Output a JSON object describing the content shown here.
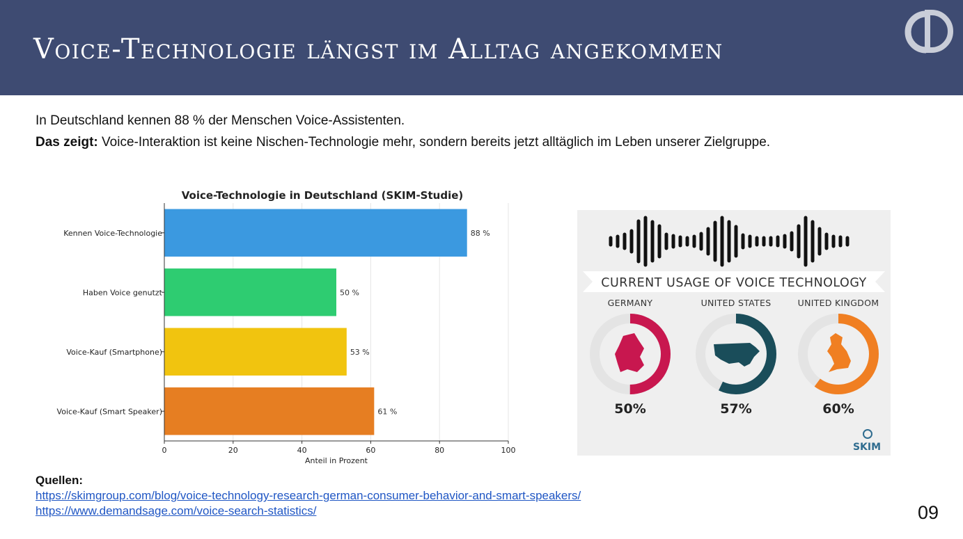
{
  "header": {
    "title": "Voice-Technologie längst im Alltag angekommen"
  },
  "intro": {
    "line1": "In Deutschland kennen 88 % der Menschen Voice-Assistenten.",
    "line2_bold": "Das zeigt:",
    "line2_rest": " Voice-Interaktion ist keine Nischen-Technologie mehr, sondern bereits jetzt alltäglich im Leben unserer Zielgruppe."
  },
  "chart_data": {
    "type": "bar",
    "orientation": "horizontal",
    "title": "Voice-Technologie in Deutschland (SKIM-Studie)",
    "xlabel": "Anteil in Prozent",
    "ylabel": "",
    "xlim": [
      0,
      100
    ],
    "xticks": [
      "0",
      "20",
      "40",
      "60",
      "80",
      "100"
    ],
    "grid": true,
    "categories": [
      "Kennen Voice-Technologie",
      "Haben Voice genutzt",
      "Voice-Kauf (Smartphone)",
      "Voice-Kauf (Smart Speaker)"
    ],
    "values": [
      88,
      50,
      53,
      61
    ],
    "value_labels": [
      "88 %",
      "50 %",
      "53 %",
      "61 %"
    ],
    "colors": [
      "#3b99e0",
      "#2ecc71",
      "#f1c40f",
      "#e67e22"
    ]
  },
  "infographic": {
    "heading": "CURRENT USAGE OF VOICE TECHNOLOGY",
    "countries": [
      {
        "name": "GERMANY",
        "pct": "50%",
        "value": 50,
        "color": "#c8174f",
        "icon": "germany-map-icon"
      },
      {
        "name": "UNITED STATES",
        "pct": "57%",
        "value": 57,
        "color": "#1a4d5a",
        "icon": "usa-map-icon"
      },
      {
        "name": "UNITED KINGDOM",
        "pct": "60%",
        "value": 60,
        "color": "#f07f22",
        "icon": "uk-map-icon"
      }
    ],
    "brand": "SKIM"
  },
  "sources": {
    "label": "Quellen:",
    "links": [
      "https://skimgroup.com/blog/voice-technology-research-german-consumer-behavior-and-smart-speakers/",
      "https://www.demandsage.com/voice-search-statistics/"
    ]
  },
  "page_number": "09"
}
